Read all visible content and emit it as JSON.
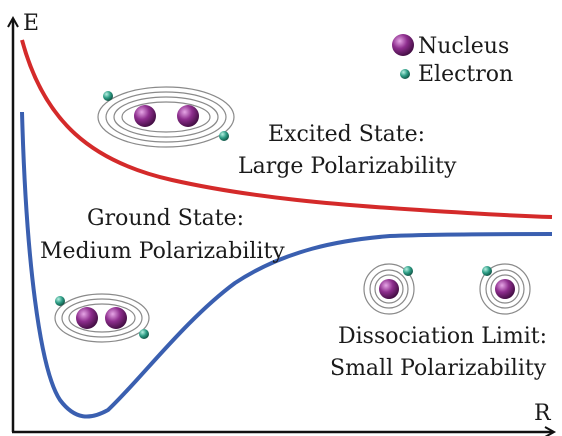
{
  "axes": {
    "y_label": "E",
    "x_label": "R"
  },
  "legend": {
    "nucleus_label": "Nucleus",
    "electron_label": "Electron"
  },
  "labels": {
    "excited_line1": "Excited State:",
    "excited_line2": "Large Polarizability",
    "ground_line1": "Ground State:",
    "ground_line2": "Medium Polarizability",
    "dissoc_line1": "Dissociation Limit:",
    "dissoc_line2": "Small Polarizability"
  },
  "colors": {
    "excited_curve": "#d42a2a",
    "ground_curve": "#3a5fb0",
    "nucleus": "#8e2e8e",
    "electron": "#2e9e86",
    "orbital": "#8a8a8a",
    "axis": "#111111"
  },
  "icons": {
    "nucleus": "purple-sphere",
    "electron": "teal-sphere"
  }
}
